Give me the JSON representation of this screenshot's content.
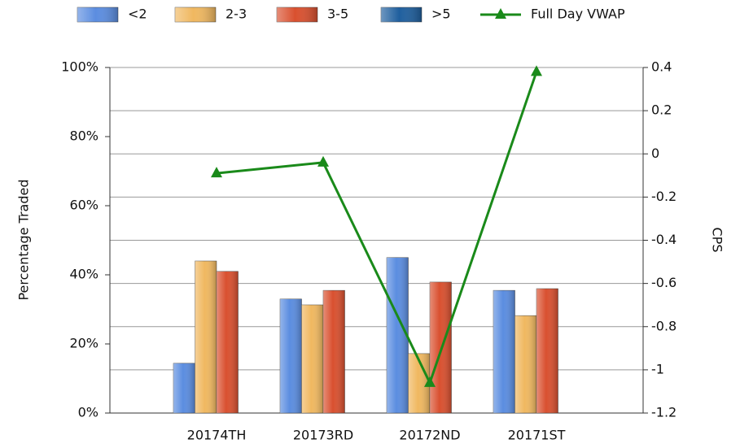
{
  "chart_data": {
    "type": "bar",
    "y_label": "Percentage Traded",
    "y2_label": "CPS",
    "categories": [
      "20174TH",
      "20173RD",
      "20172ND",
      "20171ST"
    ],
    "series": [
      {
        "name": "<2",
        "color": "#5b8de0",
        "values": [
          14.4,
          33,
          45,
          35.5
        ]
      },
      {
        "name": "2-3",
        "color": "#f0b860",
        "values": [
          44,
          31.3,
          17.2,
          28.2
        ]
      },
      {
        "name": "3-5",
        "color": "#d9502f",
        "values": [
          41,
          35.5,
          37.9,
          36
        ]
      },
      {
        "name": ">5",
        "color": "#1f5f9e",
        "values": [
          null,
          null,
          null,
          null
        ]
      },
      {
        "name": "Full Day VWAP",
        "type": "line",
        "axis": "y2",
        "color": "#1a8a1a",
        "values": [
          -0.09,
          -0.04,
          -1.06,
          0.38
        ]
      }
    ],
    "ylim": [
      0,
      100
    ],
    "yticks": [
      {
        "value": 0,
        "label": "0%"
      },
      {
        "value": 20,
        "label": "20%"
      },
      {
        "value": 40,
        "label": "40%"
      },
      {
        "value": 60,
        "label": "60%"
      },
      {
        "value": 80,
        "label": "80%"
      },
      {
        "value": 100,
        "label": "100%"
      }
    ],
    "y2lim": [
      -1.2,
      0.4
    ],
    "y2ticks": [
      -1.2,
      -1,
      -0.8,
      -0.6,
      -0.4,
      -0.2,
      0,
      0.2,
      0.4
    ],
    "grid": true,
    "legend": "top"
  }
}
